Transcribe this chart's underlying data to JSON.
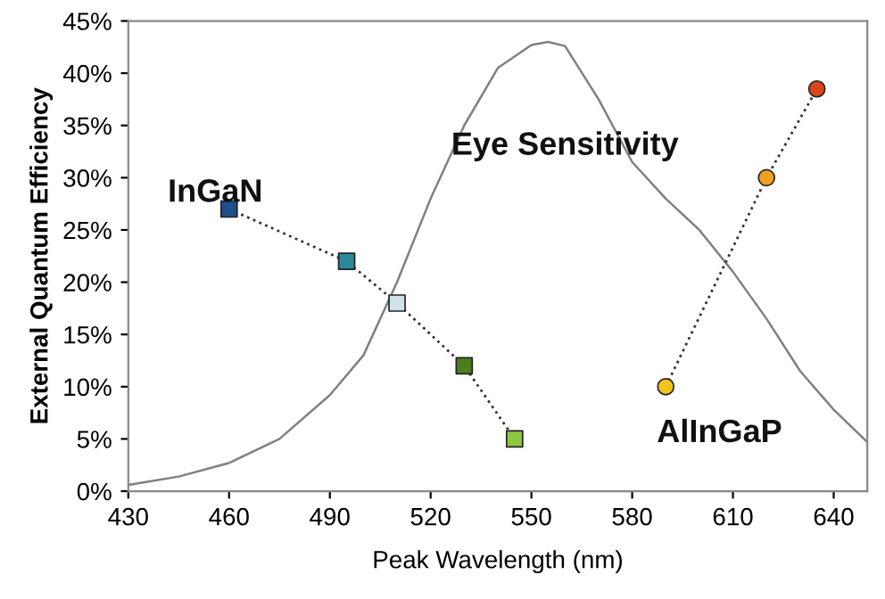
{
  "chart_data": {
    "type": "line",
    "xlabel": "Peak Wavelength (nm)",
    "ylabel": "External Quantum Efficiency",
    "xlim": [
      430,
      650
    ],
    "xticks": [
      430,
      460,
      490,
      520,
      550,
      580,
      610,
      640
    ],
    "ylim": [
      0,
      45
    ],
    "yticks": [
      {
        "value": 0,
        "label": "0%"
      },
      {
        "value": 5,
        "label": "5%"
      },
      {
        "value": 10,
        "label": "10%"
      },
      {
        "value": 15,
        "label": "15%"
      },
      {
        "value": 20,
        "label": "20%"
      },
      {
        "value": 25,
        "label": "25%"
      },
      {
        "value": 30,
        "label": "30%"
      },
      {
        "value": 35,
        "label": "35%"
      },
      {
        "value": 40,
        "label": "40%"
      },
      {
        "value": 45,
        "label": "45%"
      }
    ],
    "grid": false,
    "legend": false,
    "series": [
      {
        "name": "Eye Sensitivity",
        "color": "#808080",
        "marker": "none",
        "line_style": "solid",
        "x": [
          430,
          445,
          460,
          475,
          490,
          500,
          510,
          520,
          530,
          540,
          550,
          555,
          560,
          570,
          580,
          590,
          600,
          610,
          620,
          630,
          640,
          650
        ],
        "values": [
          0.6,
          1.4,
          2.7,
          5,
          9.2,
          13,
          20,
          28,
          35,
          40.5,
          42.7,
          43,
          42.6,
          37.5,
          31.5,
          28,
          25,
          21,
          16.5,
          11.5,
          7.8,
          4.7
        ]
      },
      {
        "name": "InGaN",
        "color": "#333333",
        "marker": "square",
        "line_style": "dotted",
        "x": [
          460,
          495,
          510,
          530,
          545
        ],
        "values": [
          27,
          22,
          18,
          12,
          5
        ],
        "colors": [
          "#1f4e8c",
          "#2a8a99",
          "#cfe3ea",
          "#4e7d1e",
          "#8dc63f"
        ]
      },
      {
        "name": "AlInGaP",
        "color": "#333333",
        "marker": "circle",
        "line_style": "dotted",
        "x": [
          590,
          620,
          635
        ],
        "values": [
          10,
          30,
          38.5
        ],
        "colors": [
          "#f2c41a",
          "#f0a020",
          "#d9461c"
        ]
      }
    ]
  }
}
